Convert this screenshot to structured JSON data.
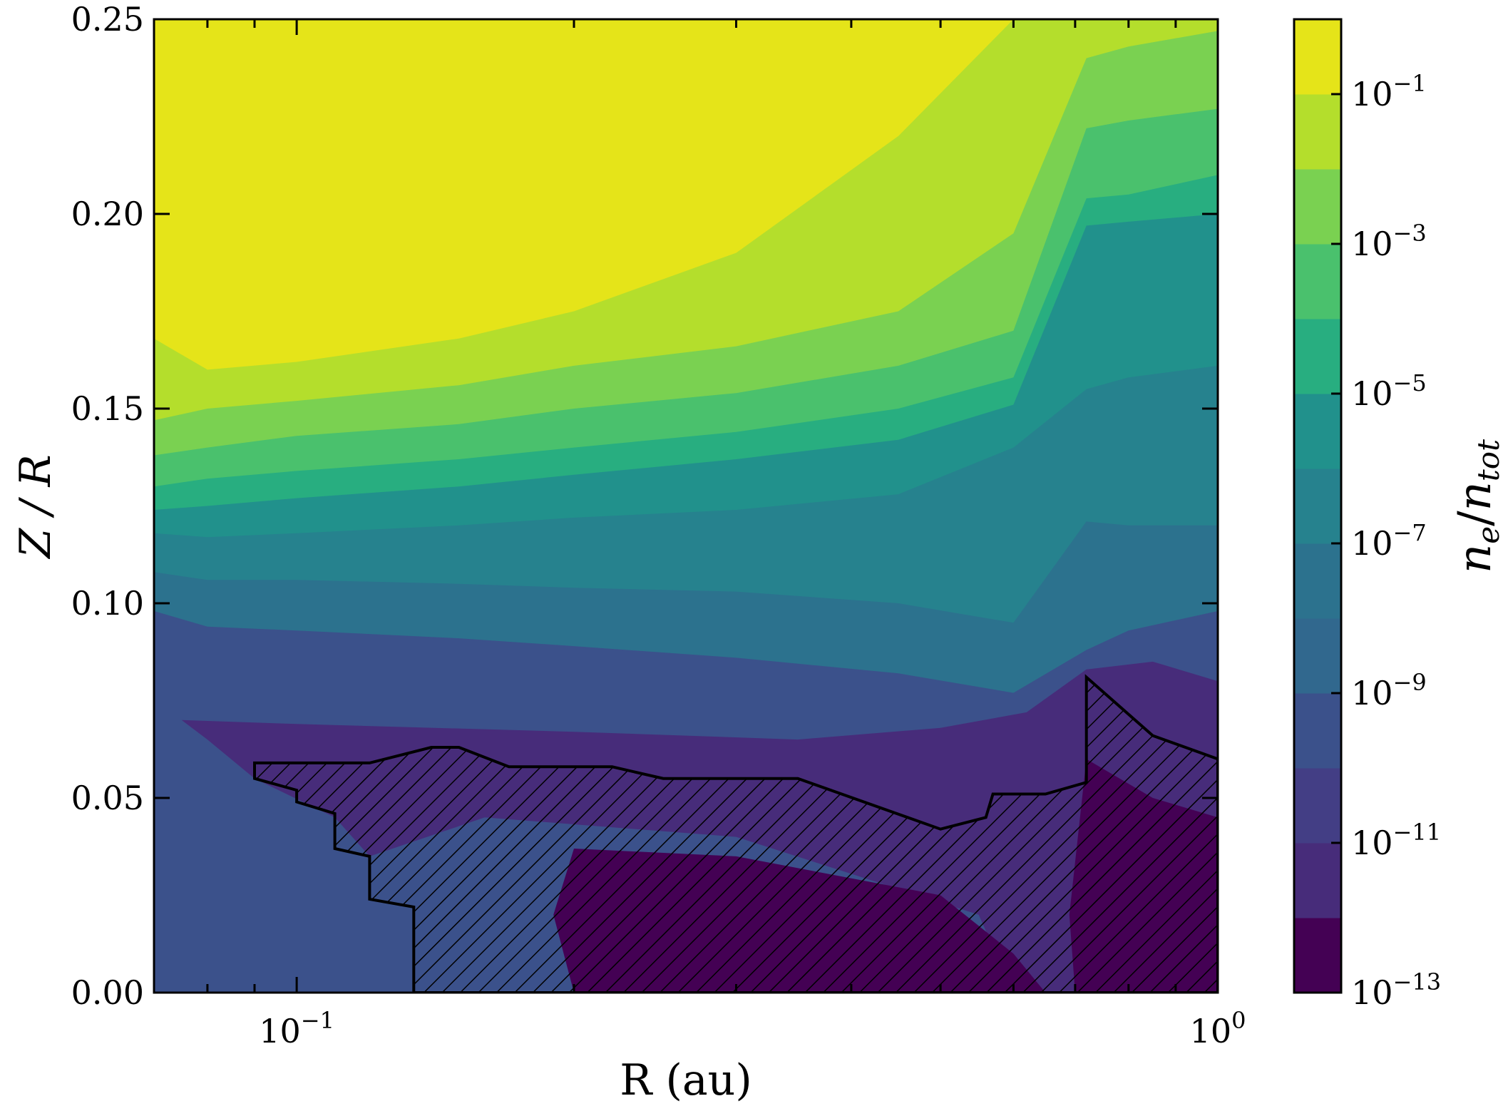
{
  "chart_data": {
    "type": "heatmap",
    "subtype": "filled-contour",
    "xlabel": "R (au)",
    "ylabel": "Z / R",
    "x_scale": "log",
    "x_range": [
      0.07,
      1.0
    ],
    "y_range": [
      0.0,
      0.25
    ],
    "x_tick_labels": [
      {
        "value": 0.1,
        "base": "10",
        "exp": "−1"
      },
      {
        "value": 1.0,
        "base": "10",
        "exp": "0"
      }
    ],
    "y_ticks": [
      0.0,
      0.05,
      0.1,
      0.15,
      0.2,
      0.25
    ],
    "y_tick_labels": [
      "0.00",
      "0.05",
      "0.10",
      "0.15",
      "0.20",
      "0.25"
    ],
    "colorbar": {
      "label_base": "n",
      "label_sub_num": "e",
      "label_sub_den": "tot",
      "scale": "log",
      "levels_log10": [
        -13,
        -12,
        -11,
        -10,
        -9,
        -8,
        -7,
        -6,
        -5,
        -4,
        -3,
        -2,
        -1,
        0
      ],
      "tick_labels": [
        {
          "value": -13,
          "base": "10",
          "exp": "−13"
        },
        {
          "value": -11,
          "base": "10",
          "exp": "−11"
        },
        {
          "value": -9,
          "base": "10",
          "exp": "−9"
        },
        {
          "value": -7,
          "base": "10",
          "exp": "−7"
        },
        {
          "value": -5,
          "base": "10",
          "exp": "−5"
        },
        {
          "value": -3,
          "base": "10",
          "exp": "−3"
        },
        {
          "value": -1,
          "base": "10",
          "exp": "−1"
        }
      ],
      "colors": [
        "#440154",
        "#472c7a",
        "#3b518b",
        "#2c718e",
        "#21908d",
        "#27ad81",
        "#5cc863",
        "#aadc32",
        "#e5e419",
        "#e5e419",
        "#3b518b",
        "#2c718e",
        "#21908d"
      ]
    },
    "band_colors": [
      "#440154",
      "#472c7a",
      "#433e85",
      "#3b518b",
      "#31688e",
      "#2c728e",
      "#26828e",
      "#21918c",
      "#28ae80",
      "#4ac16d",
      "#7ad151",
      "#b4de2c",
      "#e5e419"
    ],
    "contours": [
      {
        "log10": -9,
        "points": [
          [
            0.07,
            0.098
          ],
          [
            0.08,
            0.094
          ],
          [
            0.1,
            0.093
          ],
          [
            0.15,
            0.091
          ],
          [
            0.2,
            0.089
          ],
          [
            0.3,
            0.086
          ],
          [
            0.45,
            0.082
          ],
          [
            0.6,
            0.077
          ],
          [
            0.72,
            0.088
          ],
          [
            0.8,
            0.093
          ],
          [
            1.0,
            0.098
          ]
        ]
      },
      {
        "log10": -8,
        "points": [
          [
            0.07,
            0.108
          ],
          [
            0.08,
            0.106
          ],
          [
            0.1,
            0.106
          ],
          [
            0.15,
            0.105
          ],
          [
            0.2,
            0.104
          ],
          [
            0.3,
            0.103
          ],
          [
            0.45,
            0.1
          ],
          [
            0.6,
            0.095
          ],
          [
            0.72,
            0.121
          ],
          [
            0.8,
            0.12
          ],
          [
            1.0,
            0.12
          ]
        ]
      },
      {
        "log10": -7,
        "points": [
          [
            0.07,
            0.118
          ],
          [
            0.08,
            0.117
          ],
          [
            0.1,
            0.118
          ],
          [
            0.15,
            0.12
          ],
          [
            0.2,
            0.122
          ],
          [
            0.3,
            0.124
          ],
          [
            0.45,
            0.128
          ],
          [
            0.6,
            0.14
          ],
          [
            0.72,
            0.155
          ],
          [
            0.8,
            0.158
          ],
          [
            1.0,
            0.161
          ]
        ]
      },
      {
        "log10": -6,
        "points": [
          [
            0.07,
            0.124
          ],
          [
            0.08,
            0.125
          ],
          [
            0.1,
            0.127
          ],
          [
            0.15,
            0.13
          ],
          [
            0.2,
            0.133
          ],
          [
            0.3,
            0.137
          ],
          [
            0.45,
            0.142
          ],
          [
            0.6,
            0.151
          ],
          [
            0.72,
            0.197
          ],
          [
            0.8,
            0.198
          ],
          [
            1.0,
            0.2
          ]
        ]
      },
      {
        "log10": -5,
        "points": [
          [
            0.07,
            0.13
          ],
          [
            0.08,
            0.132
          ],
          [
            0.1,
            0.134
          ],
          [
            0.15,
            0.137
          ],
          [
            0.2,
            0.14
          ],
          [
            0.3,
            0.144
          ],
          [
            0.45,
            0.15
          ],
          [
            0.6,
            0.158
          ],
          [
            0.72,
            0.204
          ],
          [
            0.8,
            0.205
          ],
          [
            1.0,
            0.21
          ]
        ]
      },
      {
        "log10": -4,
        "points": [
          [
            0.07,
            0.138
          ],
          [
            0.08,
            0.14
          ],
          [
            0.1,
            0.143
          ],
          [
            0.15,
            0.146
          ],
          [
            0.2,
            0.15
          ],
          [
            0.3,
            0.154
          ],
          [
            0.45,
            0.161
          ],
          [
            0.6,
            0.17
          ],
          [
            0.72,
            0.222
          ],
          [
            0.8,
            0.224
          ],
          [
            1.0,
            0.227
          ]
        ]
      },
      {
        "log10": -3,
        "points": [
          [
            0.07,
            0.147
          ],
          [
            0.08,
            0.15
          ],
          [
            0.1,
            0.152
          ],
          [
            0.15,
            0.156
          ],
          [
            0.2,
            0.161
          ],
          [
            0.3,
            0.166
          ],
          [
            0.45,
            0.175
          ],
          [
            0.6,
            0.195
          ],
          [
            0.72,
            0.24
          ],
          [
            0.8,
            0.243
          ],
          [
            1.0,
            0.247
          ]
        ]
      },
      {
        "log10": -2,
        "points": [
          [
            0.07,
            0.168
          ],
          [
            0.08,
            0.16
          ],
          [
            0.1,
            0.162
          ],
          [
            0.15,
            0.168
          ],
          [
            0.2,
            0.175
          ],
          [
            0.3,
            0.19
          ],
          [
            0.45,
            0.22
          ],
          [
            0.6,
            0.25
          ]
        ]
      }
    ],
    "hatched_region": {
      "description": "dead zone boundary",
      "outline": [
        [
          0.09,
          0.059
        ],
        [
          0.12,
          0.059
        ],
        [
          0.14,
          0.063
        ],
        [
          0.15,
          0.063
        ],
        [
          0.17,
          0.058
        ],
        [
          0.22,
          0.058
        ],
        [
          0.25,
          0.055
        ],
        [
          0.35,
          0.055
        ],
        [
          0.5,
          0.042
        ],
        [
          0.56,
          0.045
        ],
        [
          0.57,
          0.051
        ],
        [
          0.65,
          0.051
        ],
        [
          0.72,
          0.054
        ],
        [
          0.72,
          0.081
        ],
        [
          0.85,
          0.066
        ],
        [
          1.0,
          0.06
        ],
        [
          1.0,
          0.0
        ],
        [
          0.134,
          0.0
        ],
        [
          0.134,
          0.022
        ],
        [
          0.12,
          0.024
        ],
        [
          0.12,
          0.035
        ],
        [
          0.11,
          0.037
        ],
        [
          0.11,
          0.046
        ],
        [
          0.1,
          0.049
        ],
        [
          0.1,
          0.052
        ],
        [
          0.09,
          0.055
        ]
      ]
    }
  }
}
